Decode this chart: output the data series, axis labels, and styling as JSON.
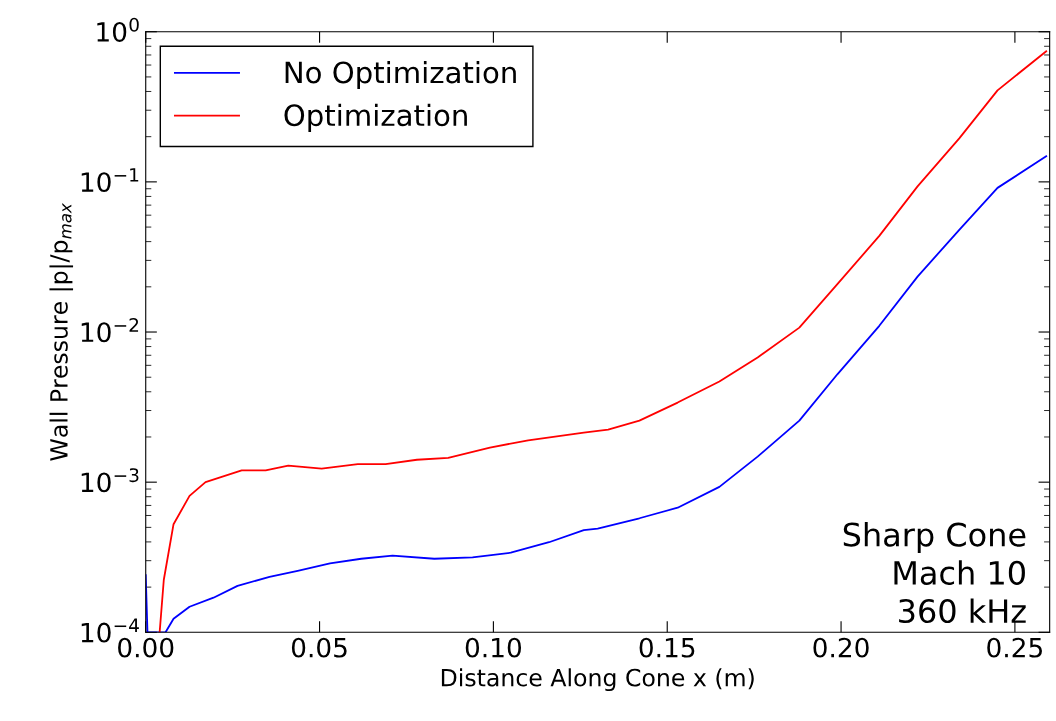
{
  "chart_data": {
    "type": "line",
    "xlabel": "Distance Along Cone x (m)",
    "ylabel": "Wall Pressure |p|/p$_{max}$",
    "log": "y",
    "grid": false,
    "legend": "top left",
    "marker": "none",
    "line_style": "solid",
    "xlim": [
      0,
      0.26
    ],
    "xticks": [
      {
        "value": 0,
        "label": "0.00"
      },
      0.05,
      {
        "value": 0.1,
        "label": "0.10"
      },
      0.15,
      {
        "value": 0.2,
        "label": "0.20"
      },
      0.25
    ],
    "ylim": [
      0.0001,
      1
    ],
    "yticks": [
      {
        "value": 0.0001,
        "label": "10$^{−4}$"
      },
      {
        "value": 0.001,
        "label": "10$^{−3}$"
      },
      {
        "value": 0.01,
        "label": "10$^{−2}$"
      },
      {
        "value": 0.1,
        "label": "10$^{−1}$"
      },
      {
        "value": 1,
        "label": "10$^{0}$"
      }
    ],
    "annotations": [
      "Sharp Cone\nMach 10\n360 kHz"
    ],
    "series": [
      {
        "name": "No Optimization",
        "color": "#0000ff",
        "x": [
          0,
          0.0005,
          0.0057,
          0.008,
          0.0126,
          0.0195,
          0.0264,
          0.0356,
          0.0437,
          0.053,
          0.062,
          0.071,
          0.083,
          0.094,
          0.105,
          0.116,
          0.126,
          0.13,
          0.142,
          0.153,
          0.165,
          0.176,
          0.188,
          0.199,
          0.211,
          0.222,
          0.234,
          0.245,
          0.259
        ],
        "values": [
          0.00024,
          0.0001,
          0.0001,
          0.000123,
          0.000148,
          0.00017,
          0.000204,
          0.000234,
          0.000257,
          0.000288,
          0.000309,
          0.000324,
          0.000309,
          0.000316,
          0.000339,
          0.000398,
          0.000479,
          0.00049,
          0.000575,
          0.000676,
          0.00093,
          0.00148,
          0.00257,
          0.00525,
          0.011,
          0.0234,
          0.0479,
          0.0912,
          0.148
        ]
      },
      {
        "name": "Optimization",
        "color": "#ff0000",
        "x": [
          0.004,
          0.0052,
          0.008,
          0.0126,
          0.0172,
          0.0276,
          0.0345,
          0.041,
          0.0506,
          0.061,
          0.069,
          0.078,
          0.087,
          0.099,
          0.11,
          0.126,
          0.133,
          0.142,
          0.153,
          0.165,
          0.176,
          0.188,
          0.199,
          0.211,
          0.222,
          0.234,
          0.245,
          0.259
        ],
        "values": [
          0.0001,
          0.000224,
          0.000525,
          0.00081,
          0.001,
          0.0012,
          0.0012,
          0.00129,
          0.00123,
          0.00132,
          0.00132,
          0.00141,
          0.00145,
          0.0017,
          0.0019,
          0.00214,
          0.00224,
          0.00257,
          0.00339,
          0.00468,
          0.00676,
          0.0107,
          0.0209,
          0.0437,
          0.0933,
          0.195,
          0.407,
          0.741
        ]
      }
    ]
  }
}
